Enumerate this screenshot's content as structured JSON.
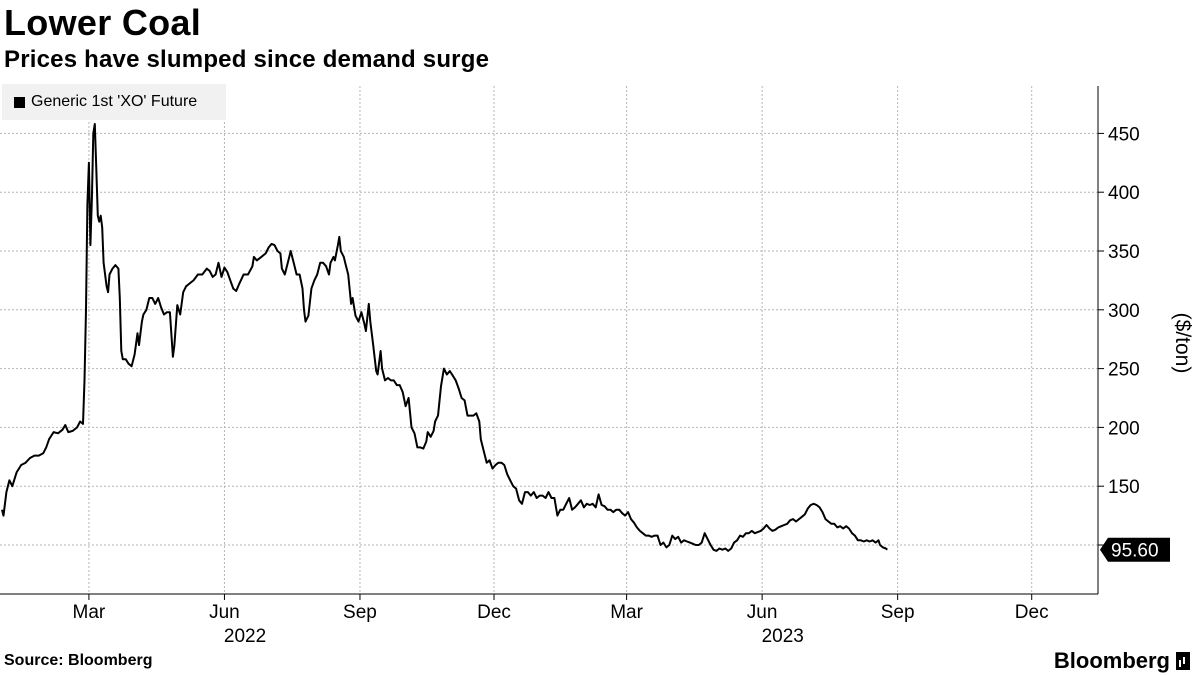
{
  "title": "Lower Coal",
  "subtitle": "Prices have slumped since demand surge",
  "legend": {
    "label": "Generic 1st 'XO' Future",
    "color": "#000000"
  },
  "source": "Source: Bloomberg",
  "brand": "Bloomberg",
  "chart_data": {
    "type": "line",
    "title": "Lower Coal",
    "subtitle": "Prices have slumped since demand surge",
    "xlabel": "",
    "ylabel": "($/ton)",
    "y_axis_position": "right",
    "ylim": [
      52,
      490
    ],
    "yticks": [
      100,
      150,
      200,
      250,
      300,
      350,
      400,
      450
    ],
    "ytick_labels": [
      "",
      "150",
      "200",
      "250",
      "300",
      "350",
      "400",
      "450"
    ],
    "grid": true,
    "legend_position": "top-left",
    "x_start": "2022-01-03",
    "x_end": "2024-01-15",
    "month_ticks": [
      {
        "label": "Mar",
        "year": "2022",
        "day": 59
      },
      {
        "label": "Jun",
        "year": "2022",
        "day": 151
      },
      {
        "label": "Sep",
        "year": "2022",
        "day": 243
      },
      {
        "label": "Dec",
        "year": "2022",
        "day": 334
      },
      {
        "label": "Mar",
        "year": "2023",
        "day": 424
      },
      {
        "label": "Jun",
        "year": "2023",
        "day": 516
      },
      {
        "label": "Sep",
        "year": "2023",
        "day": 608
      },
      {
        "label": "Dec",
        "year": "2023",
        "day": 699
      }
    ],
    "year_labels": [
      {
        "label": "2022",
        "day": 165
      },
      {
        "label": "2023",
        "day": 530
      }
    ],
    "last_value_label": "95.60",
    "series": [
      {
        "name": "Generic 1st 'XO' Future",
        "color": "#000000",
        "points": [
          [
            0,
            130
          ],
          [
            1,
            125
          ],
          [
            3,
            145
          ],
          [
            5,
            155
          ],
          [
            7,
            150
          ],
          [
            10,
            162
          ],
          [
            13,
            168
          ],
          [
            16,
            170
          ],
          [
            19,
            174
          ],
          [
            22,
            176
          ],
          [
            25,
            176
          ],
          [
            28,
            178
          ],
          [
            30,
            183
          ],
          [
            32,
            190
          ],
          [
            35,
            196
          ],
          [
            38,
            195
          ],
          [
            41,
            198
          ],
          [
            43,
            202
          ],
          [
            45,
            196
          ],
          [
            48,
            197
          ],
          [
            51,
            200
          ],
          [
            53,
            205
          ],
          [
            55,
            203
          ],
          [
            56,
            240
          ],
          [
            57,
            300
          ],
          [
            58,
            390
          ],
          [
            59,
            425
          ],
          [
            60,
            355
          ],
          [
            61,
            395
          ],
          [
            62,
            450
          ],
          [
            63,
            458
          ],
          [
            64,
            420
          ],
          [
            65,
            380
          ],
          [
            66,
            375
          ],
          [
            67,
            380
          ],
          [
            68,
            370
          ],
          [
            69,
            340
          ],
          [
            70,
            330
          ],
          [
            71,
            320
          ],
          [
            72,
            315
          ],
          [
            73,
            330
          ],
          [
            75,
            335
          ],
          [
            77,
            338
          ],
          [
            79,
            335
          ],
          [
            80,
            310
          ],
          [
            81,
            265
          ],
          [
            82,
            258
          ],
          [
            84,
            258
          ],
          [
            86,
            254
          ],
          [
            88,
            252
          ],
          [
            90,
            262
          ],
          [
            92,
            280
          ],
          [
            93,
            270
          ],
          [
            95,
            290
          ],
          [
            96,
            296
          ],
          [
            98,
            300
          ],
          [
            100,
            310
          ],
          [
            102,
            310
          ],
          [
            104,
            305
          ],
          [
            106,
            310
          ],
          [
            108,
            302
          ],
          [
            110,
            296
          ],
          [
            112,
            298
          ],
          [
            114,
            298
          ],
          [
            116,
            260
          ],
          [
            117,
            270
          ],
          [
            119,
            304
          ],
          [
            121,
            296
          ],
          [
            123,
            315
          ],
          [
            125,
            320
          ],
          [
            127,
            322
          ],
          [
            130,
            325
          ],
          [
            133,
            330
          ],
          [
            136,
            330
          ],
          [
            139,
            335
          ],
          [
            141,
            333
          ],
          [
            143,
            328
          ],
          [
            145,
            330
          ],
          [
            147,
            340
          ],
          [
            149,
            328
          ],
          [
            151,
            336
          ],
          [
            153,
            332
          ],
          [
            155,
            325
          ],
          [
            157,
            318
          ],
          [
            159,
            316
          ],
          [
            161,
            322
          ],
          [
            164,
            330
          ],
          [
            167,
            330
          ],
          [
            170,
            337
          ],
          [
            171,
            345
          ],
          [
            173,
            342
          ],
          [
            176,
            345
          ],
          [
            179,
            348
          ],
          [
            181,
            353
          ],
          [
            183,
            356
          ],
          [
            185,
            355
          ],
          [
            187,
            350
          ],
          [
            189,
            348
          ],
          [
            190,
            335
          ],
          [
            192,
            330
          ],
          [
            194,
            340
          ],
          [
            196,
            350
          ],
          [
            198,
            340
          ],
          [
            200,
            330
          ],
          [
            202,
            330
          ],
          [
            204,
            318
          ],
          [
            205,
            300
          ],
          [
            206,
            290
          ],
          [
            208,
            295
          ],
          [
            210,
            318
          ],
          [
            212,
            325
          ],
          [
            214,
            330
          ],
          [
            216,
            340
          ],
          [
            218,
            340
          ],
          [
            220,
            337
          ],
          [
            222,
            330
          ],
          [
            223,
            340
          ],
          [
            225,
            345
          ],
          [
            226,
            342
          ],
          [
            228,
            355
          ],
          [
            229,
            362
          ],
          [
            230,
            350
          ],
          [
            232,
            345
          ],
          [
            233,
            340
          ],
          [
            235,
            330
          ],
          [
            237,
            305
          ],
          [
            238,
            310
          ],
          [
            240,
            295
          ],
          [
            242,
            290
          ],
          [
            244,
            298
          ],
          [
            246,
            288
          ],
          [
            247,
            282
          ],
          [
            249,
            305
          ],
          [
            250,
            290
          ],
          [
            252,
            270
          ],
          [
            254,
            248
          ],
          [
            255,
            245
          ],
          [
            257,
            265
          ],
          [
            258,
            250
          ],
          [
            260,
            240
          ],
          [
            262,
            242
          ],
          [
            264,
            240
          ],
          [
            266,
            240
          ],
          [
            268,
            236
          ],
          [
            270,
            236
          ],
          [
            272,
            230
          ],
          [
            274,
            218
          ],
          [
            276,
            225
          ],
          [
            278,
            200
          ],
          [
            280,
            195
          ],
          [
            282,
            183
          ],
          [
            284,
            183
          ],
          [
            286,
            182
          ],
          [
            288,
            188
          ],
          [
            289,
            196
          ],
          [
            291,
            192
          ],
          [
            293,
            197
          ],
          [
            294,
            205
          ],
          [
            296,
            210
          ],
          [
            298,
            235
          ],
          [
            300,
            250
          ],
          [
            302,
            245
          ],
          [
            304,
            248
          ],
          [
            306,
            244
          ],
          [
            308,
            240
          ],
          [
            310,
            233
          ],
          [
            312,
            225
          ],
          [
            314,
            223
          ],
          [
            316,
            210
          ],
          [
            318,
            210
          ],
          [
            320,
            210
          ],
          [
            322,
            212
          ],
          [
            324,
            205
          ],
          [
            325,
            190
          ],
          [
            327,
            180
          ],
          [
            329,
            170
          ],
          [
            331,
            172
          ],
          [
            333,
            165
          ],
          [
            335,
            168
          ],
          [
            337,
            170
          ],
          [
            339,
            170
          ],
          [
            341,
            168
          ],
          [
            343,
            160
          ],
          [
            345,
            155
          ],
          [
            347,
            150
          ],
          [
            349,
            148
          ],
          [
            351,
            138
          ],
          [
            353,
            135
          ],
          [
            355,
            145
          ],
          [
            357,
            145
          ],
          [
            359,
            142
          ],
          [
            361,
            145
          ],
          [
            363,
            140
          ],
          [
            365,
            142
          ],
          [
            367,
            142
          ],
          [
            369,
            140
          ],
          [
            371,
            145
          ],
          [
            373,
            140
          ],
          [
            375,
            140
          ],
          [
            377,
            125
          ],
          [
            379,
            130
          ],
          [
            381,
            130
          ],
          [
            383,
            135
          ],
          [
            385,
            140
          ],
          [
            387,
            130
          ],
          [
            389,
            132
          ],
          [
            391,
            135
          ],
          [
            393,
            138
          ],
          [
            395,
            132
          ],
          [
            397,
            135
          ],
          [
            399,
            134
          ],
          [
            401,
            135
          ],
          [
            403,
            132
          ],
          [
            405,
            143
          ],
          [
            407,
            134
          ],
          [
            409,
            133
          ],
          [
            411,
            130
          ],
          [
            413,
            130
          ],
          [
            415,
            128
          ],
          [
            417,
            130
          ],
          [
            419,
            130
          ],
          [
            421,
            127
          ],
          [
            423,
            125
          ],
          [
            425,
            128
          ],
          [
            427,
            122
          ],
          [
            429,
            119
          ],
          [
            431,
            115
          ],
          [
            433,
            112
          ],
          [
            435,
            110
          ],
          [
            437,
            108
          ],
          [
            439,
            108
          ],
          [
            441,
            107
          ],
          [
            443,
            108
          ],
          [
            445,
            108
          ],
          [
            447,
            100
          ],
          [
            449,
            102
          ],
          [
            451,
            98
          ],
          [
            453,
            100
          ],
          [
            455,
            108
          ],
          [
            457,
            105
          ],
          [
            459,
            107
          ],
          [
            461,
            102
          ],
          [
            463,
            104
          ],
          [
            465,
            103
          ],
          [
            467,
            102
          ],
          [
            469,
            101
          ],
          [
            471,
            100
          ],
          [
            473,
            100
          ],
          [
            475,
            102
          ],
          [
            477,
            110
          ],
          [
            479,
            105
          ],
          [
            481,
            100
          ],
          [
            483,
            96
          ],
          [
            485,
            95
          ],
          [
            487,
            97
          ],
          [
            489,
            96
          ],
          [
            491,
            97
          ],
          [
            493,
            95
          ],
          [
            495,
            97
          ],
          [
            497,
            102
          ],
          [
            499,
            104
          ],
          [
            501,
            108
          ],
          [
            503,
            107
          ],
          [
            505,
            110
          ],
          [
            507,
            110
          ],
          [
            509,
            112
          ],
          [
            511,
            110
          ],
          [
            513,
            111
          ],
          [
            515,
            112
          ],
          [
            517,
            114
          ],
          [
            519,
            117
          ],
          [
            521,
            114
          ],
          [
            523,
            112
          ],
          [
            525,
            113
          ],
          [
            527,
            115
          ],
          [
            529,
            116
          ],
          [
            531,
            117
          ],
          [
            533,
            118
          ],
          [
            535,
            121
          ],
          [
            537,
            122
          ],
          [
            539,
            120
          ],
          [
            541,
            122
          ],
          [
            543,
            124
          ],
          [
            545,
            126
          ],
          [
            547,
            131
          ],
          [
            549,
            134
          ],
          [
            551,
            135
          ],
          [
            553,
            134
          ],
          [
            555,
            132
          ],
          [
            557,
            128
          ],
          [
            559,
            122
          ],
          [
            561,
            120
          ],
          [
            563,
            118
          ],
          [
            565,
            118
          ],
          [
            567,
            115
          ],
          [
            569,
            116
          ],
          [
            571,
            114
          ],
          [
            573,
            116
          ],
          [
            575,
            114
          ],
          [
            577,
            110
          ],
          [
            579,
            108
          ],
          [
            581,
            104
          ],
          [
            583,
            104
          ],
          [
            585,
            103
          ],
          [
            587,
            104
          ],
          [
            589,
            103
          ],
          [
            591,
            104
          ],
          [
            593,
            102
          ],
          [
            595,
            104
          ],
          [
            596,
            100
          ],
          [
            598,
            98
          ],
          [
            600,
            97
          ],
          [
            601,
            96
          ]
        ]
      }
    ]
  }
}
